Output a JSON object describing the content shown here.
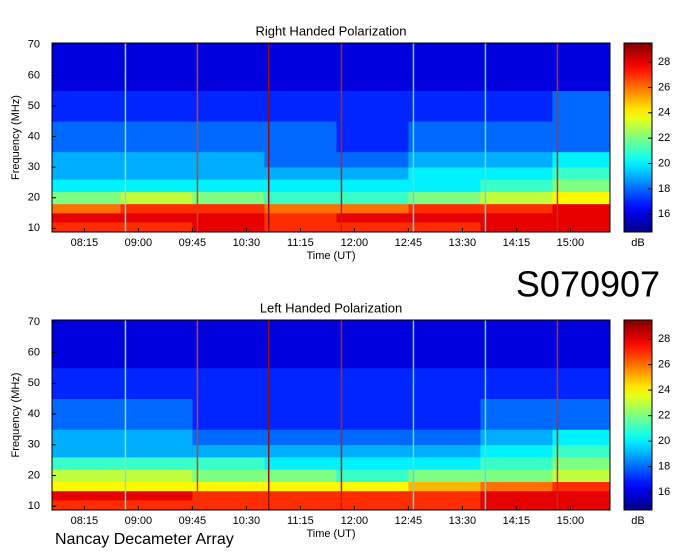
{
  "chart_data": [
    {
      "type": "heatmap",
      "title": "Right Handed Polarization",
      "xlabel": "Time (UT)",
      "ylabel": "Frequency (MHz)",
      "colorbar_label": "dB",
      "xlim": [
        7.8,
        15.55
      ],
      "ylim": [
        8.8,
        70.6
      ],
      "clim": [
        14.6,
        29.5
      ],
      "xticks": [
        {
          "value": 8.25,
          "label": "08:15"
        },
        {
          "value": 9,
          "label": "09:00"
        },
        {
          "value": 9.75,
          "label": "09:45"
        },
        {
          "value": 10.5,
          "label": "10:30"
        },
        {
          "value": 11.25,
          "label": "11:15"
        },
        {
          "value": 12,
          "label": "12:00"
        },
        {
          "value": 12.75,
          "label": "12:45"
        },
        {
          "value": 13.5,
          "label": "13:30"
        },
        {
          "value": 14.25,
          "label": "14:15"
        },
        {
          "value": 15,
          "label": "15:00"
        }
      ],
      "yticks": [
        10,
        20,
        30,
        40,
        50,
        60,
        70
      ],
      "cticks": [
        16,
        18,
        20,
        22,
        24,
        26,
        28
      ],
      "xbins": [
        7.8,
        8.75,
        9.75,
        10.75,
        11.75,
        12.75,
        13.75,
        14.75,
        15.55
      ],
      "ybins": [
        8.8,
        12,
        15,
        18,
        22,
        26,
        30,
        35,
        45,
        55,
        70.6
      ],
      "z": [
        [
          27,
          27,
          28,
          27,
          27,
          27,
          28,
          28
        ],
        [
          28,
          28,
          28,
          27,
          28,
          28,
          28,
          28
        ],
        [
          26,
          27,
          27,
          26,
          26,
          27,
          27,
          28
        ],
        [
          22,
          23,
          22,
          21,
          21,
          22,
          23,
          24
        ],
        [
          20,
          20,
          20,
          20,
          20,
          20,
          21,
          22
        ],
        [
          19,
          19,
          19,
          19,
          19,
          20,
          20,
          21
        ],
        [
          19,
          19,
          19,
          18,
          18,
          19,
          19,
          20
        ],
        [
          18,
          18,
          18,
          18,
          17,
          18,
          18,
          18
        ],
        [
          17,
          17,
          17,
          17,
          17,
          17,
          17,
          18
        ],
        [
          16,
          16,
          16,
          16,
          16,
          16,
          16,
          16
        ]
      ],
      "vlines": [
        {
          "x": 8.82,
          "color": "#7fe0d0"
        },
        {
          "x": 9.82,
          "color": "#d04020"
        },
        {
          "x": 10.81,
          "color": "#901010"
        },
        {
          "x": 11.82,
          "color": "#c02010"
        },
        {
          "x": 12.82,
          "color": "#60d8e0"
        },
        {
          "x": 13.82,
          "color": "#60d8e0"
        },
        {
          "x": 14.82,
          "color": "#c03010"
        }
      ]
    },
    {
      "type": "heatmap",
      "title": "Left Handed Polarization",
      "xlabel": "Time (UT)",
      "ylabel": "Frequency (MHz)",
      "colorbar_label": "dB",
      "xlim": [
        7.8,
        15.55
      ],
      "ylim": [
        8.8,
        70.6
      ],
      "clim": [
        14.6,
        29.5
      ],
      "xticks": [
        {
          "value": 8.25,
          "label": "08:15"
        },
        {
          "value": 9,
          "label": "09:00"
        },
        {
          "value": 9.75,
          "label": "09:45"
        },
        {
          "value": 10.5,
          "label": "10:30"
        },
        {
          "value": 11.25,
          "label": "11:15"
        },
        {
          "value": 12,
          "label": "12:00"
        },
        {
          "value": 12.75,
          "label": "12:45"
        },
        {
          "value": 13.5,
          "label": "13:30"
        },
        {
          "value": 14.25,
          "label": "14:15"
        },
        {
          "value": 15,
          "label": "15:00"
        }
      ],
      "yticks": [
        10,
        20,
        30,
        40,
        50,
        60,
        70
      ],
      "cticks": [
        16,
        18,
        20,
        22,
        24,
        26,
        28
      ],
      "xbins": [
        7.8,
        8.75,
        9.75,
        10.75,
        11.75,
        12.75,
        13.75,
        14.75,
        15.55
      ],
      "ybins": [
        8.8,
        12,
        15,
        18,
        22,
        26,
        30,
        35,
        45,
        55,
        70.6
      ],
      "z": [
        [
          27,
          27,
          27,
          27,
          27,
          27,
          28,
          28
        ],
        [
          28,
          28,
          27,
          27,
          27,
          27,
          28,
          28
        ],
        [
          24,
          24,
          24,
          24,
          24,
          25,
          26,
          27
        ],
        [
          23,
          23,
          22,
          22,
          21,
          22,
          22,
          23
        ],
        [
          21,
          21,
          21,
          20,
          20,
          20,
          21,
          22
        ],
        [
          19,
          19,
          19,
          19,
          19,
          19,
          20,
          21
        ],
        [
          19,
          19,
          18,
          18,
          18,
          18,
          19,
          20
        ],
        [
          18,
          18,
          17,
          17,
          17,
          17,
          18,
          18
        ],
        [
          17,
          17,
          17,
          17,
          17,
          17,
          17,
          17
        ],
        [
          16,
          16,
          16,
          16,
          16,
          16,
          16,
          16
        ]
      ],
      "vlines": [
        {
          "x": 8.82,
          "color": "#7fe0d0"
        },
        {
          "x": 9.82,
          "color": "#d04020"
        },
        {
          "x": 10.81,
          "color": "#901010"
        },
        {
          "x": 11.82,
          "color": "#c02010"
        },
        {
          "x": 12.82,
          "color": "#60d8e0"
        },
        {
          "x": 13.82,
          "color": "#60d8e0"
        },
        {
          "x": 14.82,
          "color": "#c03010"
        }
      ]
    }
  ],
  "code": "S070907",
  "footer": "Nancay Decameter Array"
}
